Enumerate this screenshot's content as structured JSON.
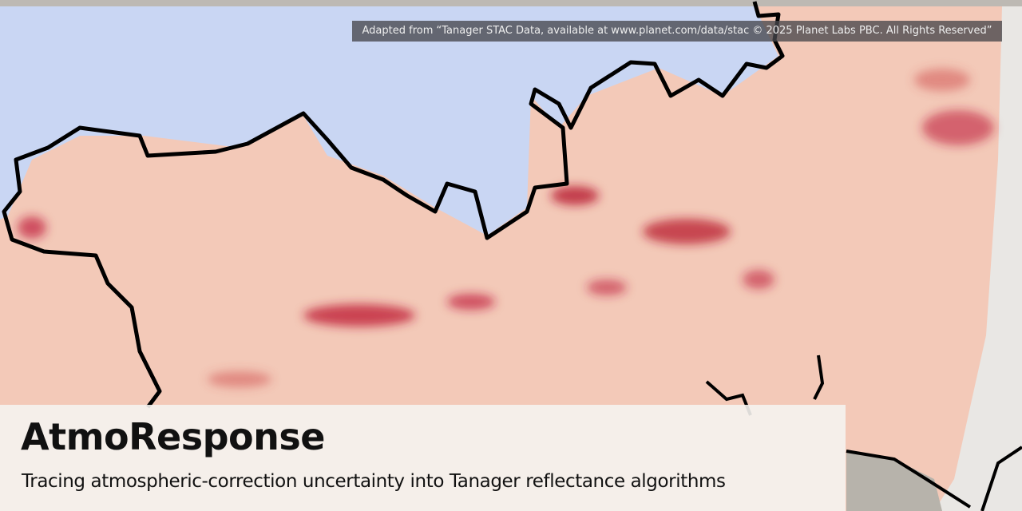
{
  "attribution": "Adapted from “Tanager STAC Data, available at www.planet.com/data/stac © 2025 Planet Labs PBC. All Rights Reserved”",
  "title": "AtmoResponse",
  "subtitle": "Tracing atmospheric-correction uncertainty into Tanager reflectance algorithms"
}
